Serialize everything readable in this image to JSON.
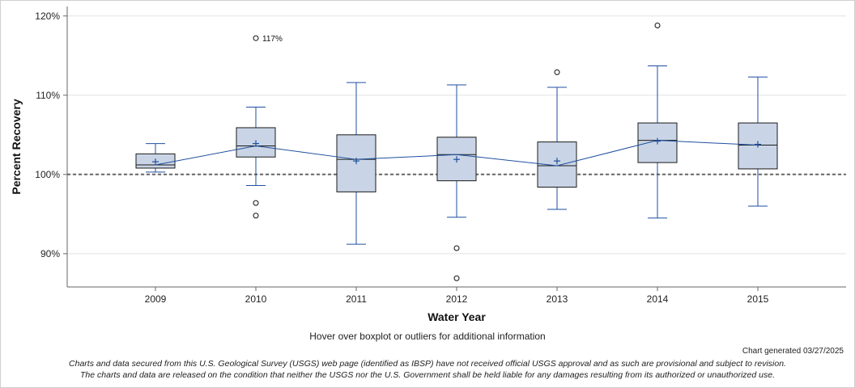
{
  "colors": {
    "box_fill": "#c9d5e6",
    "box_stroke": "#1a1a1a",
    "whisker": "#1f4fa0",
    "mean_line": "#1f4fa0",
    "reference_line": "#666666",
    "gridline": "#e3e3e3",
    "axis": "#666666"
  },
  "chart_data": {
    "type": "boxplot",
    "title": "",
    "xlabel": "Water Year",
    "ylabel": "Percent Recovery",
    "ylim": [
      85.8,
      121.2
    ],
    "yticks": [
      {
        "value": 90,
        "label": "90%"
      },
      {
        "value": 100,
        "label": "100%"
      },
      {
        "value": 110,
        "label": "110%"
      },
      {
        "value": 120,
        "label": "120%"
      }
    ],
    "reference_line": 100,
    "categories": [
      "2009",
      "2010",
      "2011",
      "2012",
      "2013",
      "2014",
      "2015"
    ],
    "boxes": [
      {
        "year": "2009",
        "whisker_low": 100.3,
        "q1": 100.8,
        "median": 101.2,
        "q3": 102.6,
        "whisker_high": 103.9,
        "mean": 101.6,
        "outliers": []
      },
      {
        "year": "2010",
        "whisker_low": 98.6,
        "q1": 102.2,
        "median": 103.6,
        "q3": 105.9,
        "whisker_high": 108.5,
        "mean": 103.9,
        "outliers": [
          117.2,
          96.4,
          94.8
        ]
      },
      {
        "year": "2011",
        "whisker_low": 91.2,
        "q1": 97.8,
        "median": 101.9,
        "q3": 105.0,
        "whisker_high": 111.6,
        "mean": 101.7,
        "outliers": []
      },
      {
        "year": "2012",
        "whisker_low": 94.6,
        "q1": 99.2,
        "median": 102.5,
        "q3": 104.7,
        "whisker_high": 111.3,
        "mean": 101.9,
        "outliers": [
          90.7,
          86.9
        ]
      },
      {
        "year": "2013",
        "whisker_low": 95.6,
        "q1": 98.4,
        "median": 101.1,
        "q3": 104.1,
        "whisker_high": 111.0,
        "mean": 101.7,
        "outliers": [
          112.9
        ]
      },
      {
        "year": "2014",
        "whisker_low": 94.5,
        "q1": 101.5,
        "median": 104.3,
        "q3": 106.5,
        "whisker_high": 113.7,
        "mean": 104.2,
        "outliers": [
          118.8
        ]
      },
      {
        "year": "2015",
        "whisker_low": 96.0,
        "q1": 100.7,
        "median": 103.7,
        "q3": 106.5,
        "whisker_high": 112.3,
        "mean": 103.8,
        "outliers": []
      }
    ],
    "annotations": [
      {
        "year": "2010",
        "value": 117.2,
        "text": "117%"
      }
    ]
  },
  "hover_note": "Hover over boxplot or outliers for additional information",
  "generated": "Chart generated 03/27/2025",
  "disclaimer": {
    "line1": "Charts and data secured from this U.S. Geological Survey (USGS) web page (identified as IBSP) have not received official USGS approval and as such are provisional and subject to revision.",
    "line2": "The charts and data are released on the condition that neither the USGS nor the U.S. Government shall be held liable for any damages resulting from its authorized or unauthorized use."
  }
}
